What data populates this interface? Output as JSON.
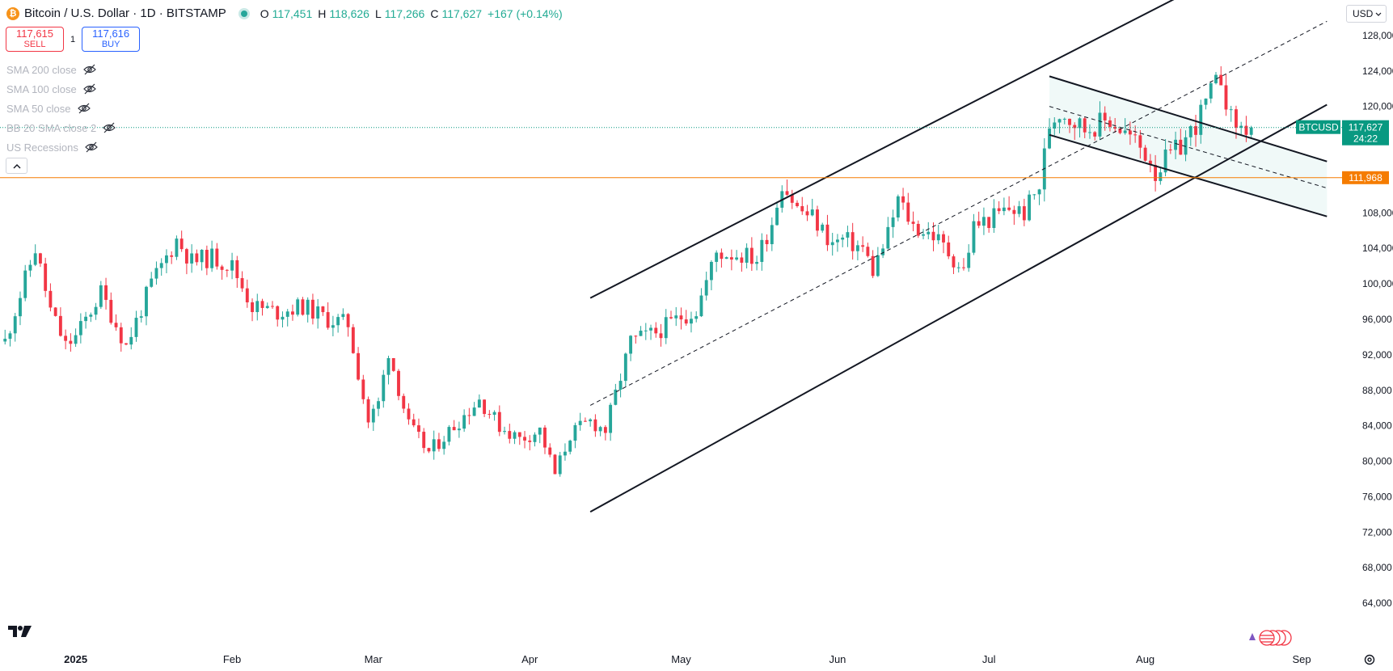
{
  "header": {
    "symbol_title": "Bitcoin / U.S. Dollar · 1D · BITSTAMP",
    "ohlc": [
      {
        "k": "O",
        "v": "117,451"
      },
      {
        "k": "H",
        "v": "118,626"
      },
      {
        "k": "L",
        "v": "117,266"
      },
      {
        "k": "C",
        "v": "117,627"
      }
    ],
    "change": "+167 (+0.14%)"
  },
  "trade": {
    "sell_price": "117,615",
    "sell_label": "SELL",
    "spread": "1",
    "buy_price": "117,616",
    "buy_label": "BUY"
  },
  "indicators": [
    {
      "label": "SMA 200 close"
    },
    {
      "label": "SMA 100 close"
    },
    {
      "label": "SMA 50 close"
    },
    {
      "label": "BB 20 SMA close 2"
    },
    {
      "label": "US Recessions"
    }
  ],
  "currency": "USD",
  "colors": {
    "up": "#26a69a",
    "down": "#f23645",
    "level": "#f57c00",
    "accent": "#089981"
  },
  "chart_data": {
    "type": "candlestick",
    "title": "Bitcoin / U.S. Dollar · 1D · BITSTAMP",
    "y_ticks": [
      64000,
      68000,
      72000,
      76000,
      80000,
      84000,
      88000,
      92000,
      96000,
      100000,
      104000,
      108000,
      120000,
      124000,
      128000
    ],
    "y_tick_labels": [
      "64,000",
      "68,000",
      "72,000",
      "76,000",
      "80,000",
      "84,000",
      "88,000",
      "92,000",
      "96,000",
      "100,000",
      "104,000",
      "108,000",
      "120,000",
      "124,000",
      "128,000"
    ],
    "ylim": [
      60000,
      132000
    ],
    "x_labels": [
      {
        "label": "2025",
        "day": 0,
        "bold": true
      },
      {
        "label": "Feb",
        "day": 31
      },
      {
        "label": "Mar",
        "day": 59
      },
      {
        "label": "Apr",
        "day": 90
      },
      {
        "label": "May",
        "day": 120
      },
      {
        "label": "Jun",
        "day": 151
      },
      {
        "label": "Jul",
        "day": 181
      },
      {
        "label": "Aug",
        "day": 212
      },
      {
        "label": "Sep",
        "day": 243
      }
    ],
    "xlim_days": [
      -15,
      251
    ],
    "price_close_series": [
      [
        -14,
        93500
      ],
      [
        -8,
        104000
      ],
      [
        -5,
        97000
      ],
      [
        -2,
        93000
      ],
      [
        0,
        94000
      ],
      [
        5,
        99000
      ],
      [
        10,
        93000
      ],
      [
        15,
        100000
      ],
      [
        20,
        105000
      ],
      [
        23,
        102500
      ],
      [
        27,
        103000
      ],
      [
        31,
        102000
      ],
      [
        35,
        97500
      ],
      [
        40,
        96800
      ],
      [
        45,
        97500
      ],
      [
        50,
        96000
      ],
      [
        54,
        95500
      ],
      [
        58,
        84500
      ],
      [
        60,
        86500
      ],
      [
        62,
        92500
      ],
      [
        66,
        84000
      ],
      [
        70,
        81000
      ],
      [
        75,
        84000
      ],
      [
        80,
        87000
      ],
      [
        84,
        84000
      ],
      [
        88,
        82500
      ],
      [
        92,
        83500
      ],
      [
        95,
        78500
      ],
      [
        98,
        83000
      ],
      [
        102,
        84500
      ],
      [
        105,
        83500
      ],
      [
        110,
        93500
      ],
      [
        115,
        94500
      ],
      [
        120,
        96300
      ],
      [
        123,
        97000
      ],
      [
        127,
        103500
      ],
      [
        132,
        103300
      ],
      [
        135,
        102800
      ],
      [
        138,
        107000
      ],
      [
        140,
        111500
      ],
      [
        143,
        108500
      ],
      [
        146,
        107500
      ],
      [
        150,
        104500
      ],
      [
        152,
        105000
      ],
      [
        156,
        104000
      ],
      [
        158,
        101500
      ],
      [
        161,
        105500
      ],
      [
        163,
        109500
      ],
      [
        166,
        106500
      ],
      [
        170,
        105500
      ],
      [
        173,
        103500
      ],
      [
        176,
        101500
      ],
      [
        178,
        106500
      ],
      [
        182,
        107500
      ],
      [
        185,
        108500
      ],
      [
        188,
        108000
      ],
      [
        191,
        111000
      ],
      [
        193,
        118000
      ],
      [
        195,
        119500
      ],
      [
        200,
        117500
      ],
      [
        205,
        118500
      ],
      [
        210,
        116000
      ],
      [
        213,
        114000
      ],
      [
        214,
        112500
      ],
      [
        216,
        114000
      ],
      [
        219,
        115500
      ],
      [
        222,
        118000
      ],
      [
        225,
        121500
      ],
      [
        227,
        123300
      ],
      [
        229,
        118500
      ],
      [
        231,
        117500
      ],
      [
        233,
        117627
      ]
    ],
    "channel": {
      "upper": [
        [
          102,
          98400
        ],
        [
          238,
          138000
        ]
      ],
      "median": [
        [
          102,
          86300
        ],
        [
          248,
          129600
        ]
      ],
      "lower": [
        [
          102,
          74300
        ],
        [
          248,
          120200
        ]
      ]
    },
    "flag": {
      "upper": [
        [
          193,
          123400
        ],
        [
          248,
          113800
        ]
      ],
      "median": [
        [
          193,
          120000
        ],
        [
          248,
          110800
        ]
      ],
      "lower": [
        [
          193,
          116800
        ],
        [
          248,
          107600
        ]
      ]
    },
    "horizontal_level": {
      "value": 111968,
      "label": "111,968"
    },
    "last_price": {
      "symbol": "BTCUSD",
      "value": 117627,
      "label": "117,627",
      "countdown": "24:22"
    }
  }
}
